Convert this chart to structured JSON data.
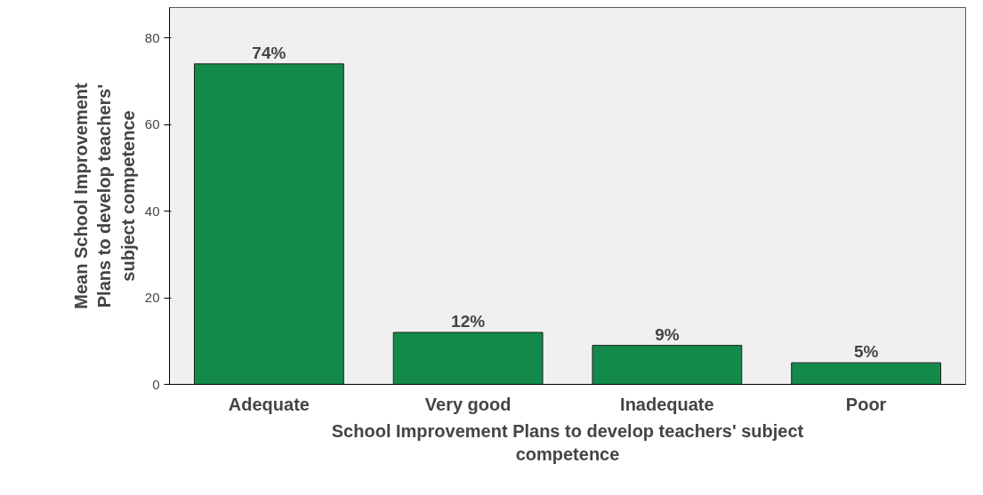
{
  "chart_data": {
    "type": "bar",
    "xlabel": "School Improvement Plans to develop teachers' subject competence",
    "ylabel": "Mean School Improvement Plans to develop teachers' subject competence",
    "categories": [
      "Adequate",
      "Very good",
      "Inadequate",
      "Poor"
    ],
    "values": [
      74,
      12,
      9,
      5
    ],
    "color": "#138a4a",
    "value_labels": [
      "74%",
      "12%",
      "9%",
      "5%"
    ],
    "ylim": [
      0,
      87
    ],
    "yticks": [
      0,
      20,
      40,
      60,
      80
    ],
    "grid": false
  }
}
